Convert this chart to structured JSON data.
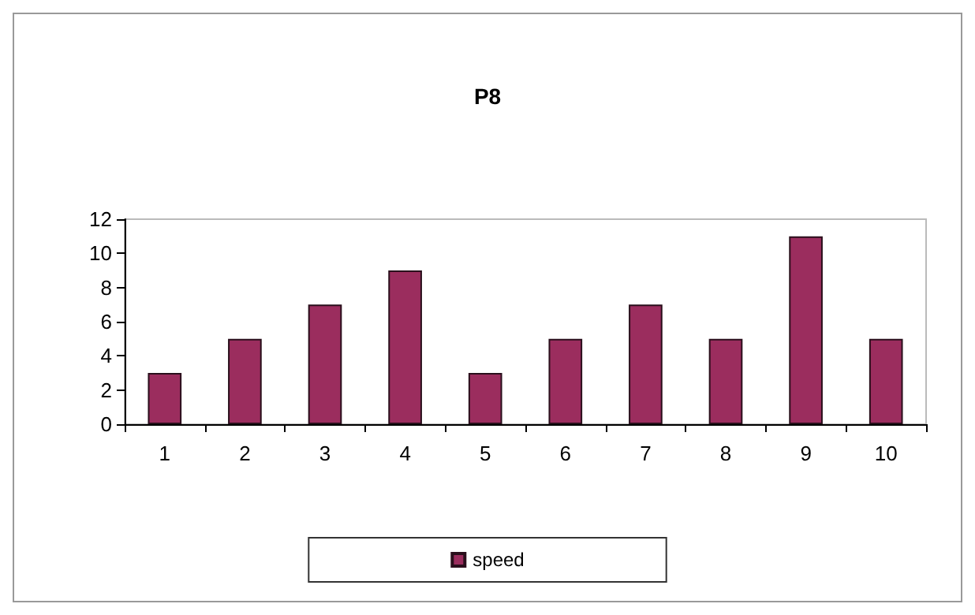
{
  "chart_data": {
    "type": "bar",
    "title": "P8",
    "categories": [
      "1",
      "2",
      "3",
      "4",
      "5",
      "6",
      "7",
      "8",
      "9",
      "10"
    ],
    "series": [
      {
        "name": "speed",
        "color": "#9b2d5e",
        "values": [
          3,
          5,
          7,
          9,
          3,
          5,
          7,
          5,
          11,
          5
        ]
      }
    ],
    "ylim": [
      0,
      12
    ],
    "yticks": [
      0,
      2,
      4,
      6,
      8,
      10,
      12
    ],
    "grid": false,
    "legend": "bottom"
  }
}
